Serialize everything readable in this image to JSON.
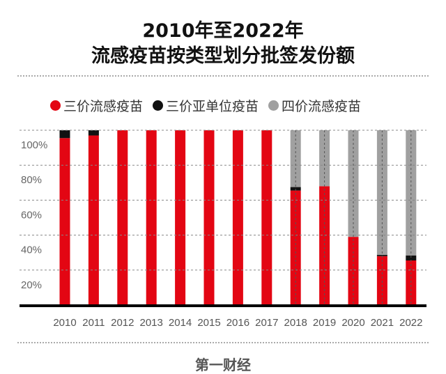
{
  "chart_data": {
    "type": "bar",
    "stacked": true,
    "title": "2010年至2022年",
    "subtitle": "流感疫苗按类型划分批签发份额",
    "categories": [
      "2010",
      "2011",
      "2012",
      "2013",
      "2014",
      "2015",
      "2016",
      "2017",
      "2018",
      "2019",
      "2020",
      "2021",
      "2022"
    ],
    "series": [
      {
        "name": "三价流感疫苗",
        "color": "#e30613",
        "values": [
          95.5,
          97,
          100,
          100,
          100,
          100,
          100,
          100,
          65.5,
          68,
          39,
          28,
          25.5
        ]
      },
      {
        "name": "三价亚单位疫苗",
        "color": "#111111",
        "values": [
          4.5,
          3,
          0,
          0,
          0,
          0,
          0,
          0,
          2,
          0,
          0,
          0.7,
          2.9
        ]
      },
      {
        "name": "四价流感疫苗",
        "color": "#a0a0a0",
        "values": [
          0,
          0,
          0,
          0,
          0,
          0,
          0,
          0,
          32.5,
          32,
          61,
          71.3,
          71.6
        ]
      }
    ],
    "yticks": [
      "20%",
      "40%",
      "60%",
      "80%",
      "100%"
    ],
    "ytick_values": [
      20,
      40,
      60,
      80,
      100
    ],
    "ylim": [
      0,
      100
    ],
    "xlabel": "",
    "ylabel": "",
    "legend_position": "top-left",
    "grid": true
  },
  "footer": "第一财经"
}
